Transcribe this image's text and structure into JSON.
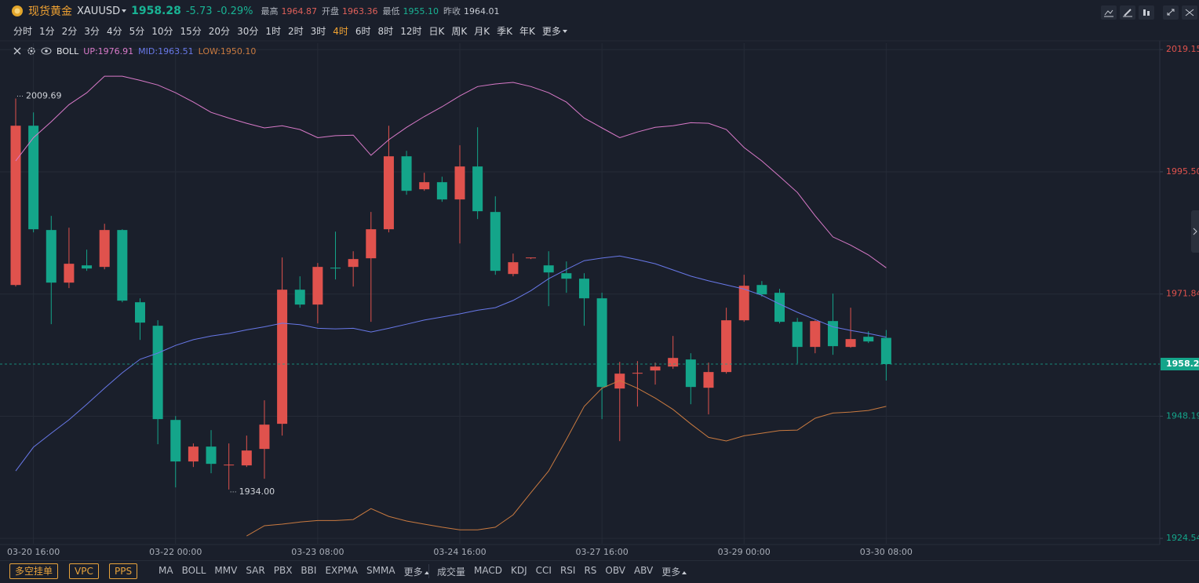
{
  "header": {
    "name": "现货黄金",
    "symbol": "XAUUSD",
    "price": "1958.28",
    "change": "-5.73",
    "change_pct": "-0.29%",
    "price_color": "#19b394",
    "stats": [
      {
        "label": "最高",
        "value": "1964.87",
        "color": "#e0605a"
      },
      {
        "label": "开盘",
        "value": "1963.36",
        "color": "#e0605a"
      },
      {
        "label": "最低",
        "value": "1955.10",
        "color": "#19b394"
      },
      {
        "label": "昨收",
        "value": "1964.01",
        "color": "#c7cbd3"
      }
    ]
  },
  "timeframes": [
    "分时",
    "1分",
    "2分",
    "3分",
    "4分",
    "5分",
    "10分",
    "15分",
    "20分",
    "30分",
    "1时",
    "2时",
    "3时",
    "4时",
    "6时",
    "8时",
    "12时",
    "日K",
    "周K",
    "月K",
    "季K",
    "年K",
    "更多"
  ],
  "active_timeframe": "4时",
  "indicator": "BOLL",
  "chart_data": {
    "type": "candlestick",
    "categories": [
      null,
      "03-20 16:00",
      null,
      null,
      null,
      null,
      null,
      null,
      null,
      "03-22 00:00",
      null,
      null,
      null,
      null,
      null,
      null,
      null,
      "03-23 08:00",
      null,
      null,
      null,
      null,
      null,
      null,
      null,
      "03-24 16:00",
      null,
      null,
      null,
      null,
      null,
      null,
      null,
      "03-27 16:00",
      null,
      null,
      null,
      null,
      null,
      null,
      null,
      "03-29 00:00",
      null,
      null,
      null,
      null,
      null,
      null,
      null,
      "03-30 08:00"
    ],
    "open": [
      1973.59,
      2004.42,
      1984.23,
      1974.05,
      1977.39,
      1977.09,
      1984.23,
      1970.25,
      1965.7,
      1947.47,
      1939.43,
      1942.31,
      1938.67,
      1938.67,
      1941.86,
      1946.72,
      1972.68,
      1969.8,
      1976.94,
      1977.09,
      1978.76,
      1984.38,
      1998.5,
      1992.12,
      1993.49,
      1990.15,
      1996.53,
      1987.72,
      1975.72,
      1978.76,
      1977.39,
      1975.87,
      1974.81,
      1971.01,
      1953.55,
      1956.43,
      1957.04,
      1957.8,
      1959.17,
      1953.7,
      1956.74,
      1966.76,
      1973.59,
      1972.08,
      1966.46,
      1961.6,
      1966.61,
      1961.6,
      1963.57,
      1963.36
    ],
    "high": [
      2009.69,
      2007.0,
      1986.96,
      1984.68,
      1980.43,
      1985.44,
      1984.38,
      1971.01,
      1966.76,
      1948.23,
      1942.92,
      1945.5,
      1942.92,
      1944.44,
      1951.27,
      1978.91,
      1975.27,
      1977.85,
      1983.92,
      1980.12,
      1987.72,
      2004.42,
      1999.56,
      1995.31,
      1994.55,
      2000.63,
      2004.12,
      1990.75,
      1979.67,
      1978.91,
      1980.12,
      1978.15,
      1975.87,
      1972.08,
      1958.71,
      1958.86,
      1958.56,
      1963.72,
      1960.38,
      1958.56,
      1969.19,
      1975.57,
      1974.35,
      1972.84,
      1967.22,
      1966.76,
      1971.92,
      1969.19,
      1964.64,
      1964.87
    ],
    "low": [
      1973.29,
      1983.77,
      1966.0,
      1972.99,
      1976.33,
      1976.63,
      1970.25,
      1962.96,
      1942.77,
      1934.41,
      1938.36,
      1937.15,
      1934.0,
      1938.36,
      1936.09,
      1944.44,
      1969.19,
      1966.15,
      1974.66,
      1973.29,
      1966.46,
      1983.77,
      1991.06,
      1991.82,
      1989.69,
      1981.64,
      1986.35,
      1975.57,
      1975.27,
      1978.61,
      1969.49,
      1972.08,
      1965.7,
      1947.63,
      1943.37,
      1950.06,
      1954.31,
      1957.35,
      1950.51,
      1948.54,
      1956.43,
      1966.46,
      1971.32,
      1966.15,
      1958.41,
      1960.38,
      1960.08,
      1961.45,
      1962.36,
      1955.1
    ],
    "close": [
      2004.42,
      1984.38,
      1974.05,
      1977.7,
      1976.78,
      1984.23,
      1970.56,
      1966.31,
      1947.63,
      1939.43,
      1942.31,
      1938.97,
      1938.82,
      1941.55,
      1946.56,
      1972.68,
      1969.8,
      1977.09,
      1976.78,
      1978.61,
      1984.38,
      1998.5,
      1991.82,
      1993.49,
      1990.15,
      1996.53,
      1987.87,
      1976.33,
      1978.0,
      1978.91,
      1976.02,
      1974.81,
      1971.01,
      1953.85,
      1956.43,
      1956.59,
      1957.8,
      1959.47,
      1953.85,
      1956.74,
      1966.76,
      1973.44,
      1971.77,
      1966.46,
      1961.6,
      1966.61,
      1961.75,
      1963.12,
      1962.66,
      1958.28
    ],
    "up_color": "#e0524d",
    "down_color": "#14a58a",
    "series": [
      {
        "name": "UP:1976.91",
        "color": "#d97ac9",
        "values": [
          1997.6,
          2002.1,
          2005.2,
          2008.5,
          2010.8,
          2014.0,
          2014.0,
          2013.2,
          2012.3,
          2010.8,
          2009.0,
          2007.0,
          2005.9,
          2004.9,
          2004.0,
          2004.4,
          2003.7,
          2002.1,
          2002.5,
          2002.6,
          1998.7,
          2001.7,
          2004.1,
          2006.2,
          2008.1,
          2010.2,
          2012.0,
          2012.5,
          2012.8,
          2012.0,
          2010.8,
          2009.0,
          2005.9,
          2004.0,
          2002.1,
          2003.2,
          2004.1,
          2004.4,
          2005.0,
          2004.9,
          2003.7,
          2000.2,
          1997.6,
          1994.6,
          1991.5,
          1987.0,
          1982.9,
          1981.3,
          1979.4,
          1976.91
        ]
      },
      {
        "name": "MID:1963.51",
        "color": "#6878e8",
        "values": [
          1937.6,
          1942.2,
          1944.9,
          1947.5,
          1950.5,
          1953.6,
          1956.6,
          1959.2,
          1960.4,
          1961.9,
          1963.0,
          1963.7,
          1964.2,
          1964.9,
          1965.5,
          1966.2,
          1965.9,
          1965.2,
          1965.1,
          1965.2,
          1964.5,
          1965.2,
          1966.0,
          1966.8,
          1967.4,
          1968.0,
          1968.7,
          1969.2,
          1970.6,
          1972.5,
          1974.8,
          1976.6,
          1978.3,
          1978.8,
          1979.2,
          1978.5,
          1977.7,
          1976.5,
          1975.3,
          1974.4,
          1973.6,
          1972.8,
          1971.6,
          1969.9,
          1968.3,
          1966.9,
          1965.5,
          1964.8,
          1964.2,
          1963.51
        ]
      },
      {
        "name": "LOW:1950.10",
        "color": "#c97a40",
        "values": [
          null,
          null,
          null,
          null,
          null,
          null,
          null,
          null,
          null,
          null,
          null,
          null,
          null,
          1925.0,
          1927.0,
          1927.3,
          1927.7,
          1928.0,
          1928.0,
          1928.2,
          1930.3,
          1928.8,
          1927.9,
          1927.3,
          1926.7,
          1926.2,
          1926.2,
          1926.7,
          1929.1,
          1933.4,
          1937.6,
          1943.7,
          1950.1,
          1953.6,
          1955.1,
          1953.6,
          1951.7,
          1949.5,
          1946.7,
          1944.1,
          1943.4,
          1944.4,
          1944.9,
          1945.4,
          1945.5,
          1947.8,
          1948.8,
          1949.0,
          1949.3,
          1950.1
        ]
      }
    ],
    "ylim": [
      1923.5,
      2020.4
    ],
    "yticks": [
      2019.15,
      {
        "value": 1995.5,
        "label": "1995.50"
      },
      1971.84,
      1948.19,
      1924.54
    ],
    "grid": true,
    "last_price": 1958.28,
    "extremes": [
      {
        "value": 2009.69,
        "label": "2009.69"
      },
      {
        "value": 1934.0,
        "label": "1934.00"
      }
    ]
  },
  "bottom": {
    "buttons": [
      "多空挂单",
      "VPC",
      "PPS"
    ],
    "main_indicators": [
      "MA",
      "BOLL",
      "MMV",
      "SAR",
      "PBX",
      "BBI",
      "EXPMA",
      "SMMA",
      "更多"
    ],
    "sub_indicators": [
      "成交量",
      "MACD",
      "KDJ",
      "CCI",
      "RSI",
      "RS",
      "OBV",
      "ABV",
      "更多"
    ]
  }
}
